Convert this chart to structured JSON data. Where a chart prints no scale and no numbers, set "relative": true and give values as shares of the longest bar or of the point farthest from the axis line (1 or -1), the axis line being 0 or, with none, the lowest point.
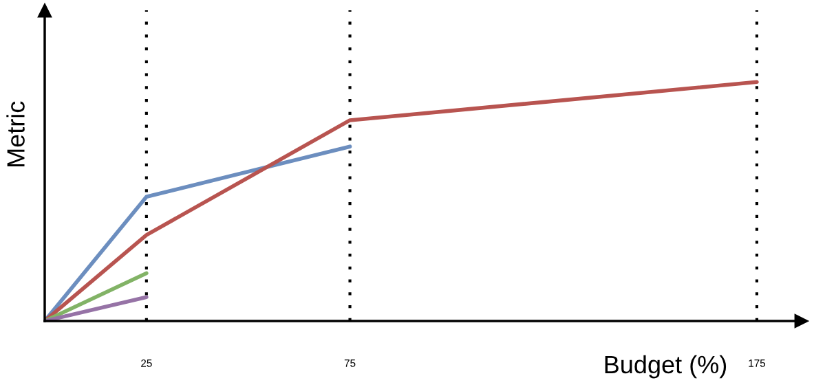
{
  "chart_data": {
    "type": "line",
    "relative": true,
    "xlabel": "Budget (%)",
    "ylabel": "Metric",
    "xlim": [
      0,
      186
    ],
    "xticks": [
      25,
      75,
      175
    ],
    "grid": false,
    "marker": "none",
    "line_style": "solid",
    "series": [
      {
        "color": "#6c8ebf",
        "x": [
          0,
          25,
          75
        ],
        "values": [
          0,
          0.52,
          0.73
        ]
      },
      {
        "color": "#b85450",
        "x": [
          0,
          25,
          75,
          175
        ],
        "values": [
          0,
          0.36,
          0.84,
          1
        ]
      },
      {
        "color": "#82b366",
        "x": [
          0,
          25
        ],
        "values": [
          0,
          0.2
        ]
      },
      {
        "color": "#9673a6",
        "x": [
          0,
          25
        ],
        "values": [
          0,
          0.1
        ]
      }
    ],
    "ref_lines": [
      {
        "axis": "x",
        "value": 25,
        "color": "#000000",
        "line_style": "dotted"
      },
      {
        "axis": "x",
        "value": 75,
        "color": "#000000",
        "line_style": "dotted"
      },
      {
        "axis": "x",
        "value": 175,
        "color": "#000000",
        "line_style": "dotted"
      }
    ]
  }
}
